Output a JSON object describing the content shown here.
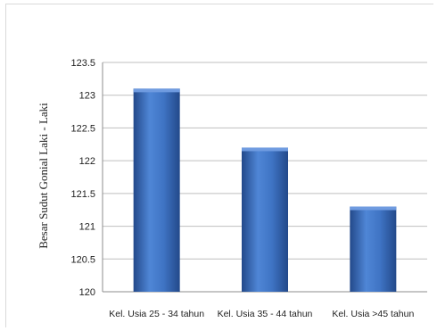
{
  "chart_data": {
    "type": "bar",
    "title": "",
    "xlabel": "",
    "ylabel": "Besar Sudut Gonial Laki - Laki",
    "categories": [
      "Kel. Usia 25 - 34 tahun",
      "Kel. Usia 35 - 44 tahun",
      "Kel. Usia >45 tahun"
    ],
    "values": [
      123.1,
      122.2,
      121.3
    ],
    "ylim": [
      120,
      123.5
    ],
    "yticks": [
      "120",
      "120.5",
      "121",
      "121.5",
      "122",
      "122.5",
      "123",
      "123.5"
    ],
    "grid": true,
    "legend": "none",
    "colors": {
      "bar": "#3f74c4",
      "bar_dark": "#23498a",
      "bar_light": "#6f9be0",
      "grid": "#bfbfbf"
    }
  }
}
